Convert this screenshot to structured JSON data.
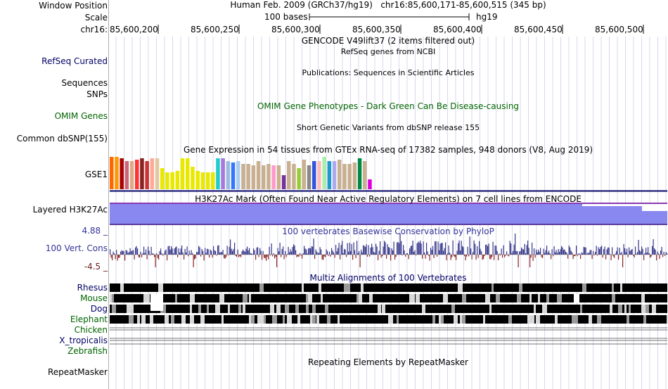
{
  "header": {
    "window_position_label": "Window Position",
    "scale_label": "Scale",
    "chrom_label": "chr16:",
    "assembly_text": "Human Feb. 2009 (GRCh37/hg19)   chr16:85,600,171-85,600,515 (345 bp)",
    "scale_text": "100 bases",
    "scale_db": "hg19",
    "ticks": [
      "85,600,200",
      "85,600,250",
      "85,600,300",
      "85,600,350",
      "85,600,400",
      "85,600,450",
      "85,600,500"
    ]
  },
  "tracks": {
    "gencode": {
      "center_label": "GENCODE V49lift37 (2 items filtered out)"
    },
    "refseq": {
      "label": "RefSeq Curated",
      "center_label": "RefSeq genes from NCBI"
    },
    "publications": {
      "center_label": "Publications: Sequences in Scientific Articles"
    },
    "sequences": {
      "label": "Sequences"
    },
    "snps": {
      "label": "SNPs"
    },
    "omim": {
      "label": "OMIM Genes",
      "center_label": "OMIM Gene Phenotypes - Dark Green Can Be Disease-causing"
    },
    "dbsnp": {
      "label": "Common dbSNP(155)",
      "center_label": "Short Genetic Variants from dbSNP release 155"
    },
    "gtex": {
      "label": "GSE1",
      "center_label": "Gene Expression in 54 tissues from GTEx RNA-seq of 17382 samples, 948 donors (V8, Aug 2019)",
      "tissue_colors": [
        "#FF6600",
        "#FF9900",
        "#AA0000",
        "#CC6677",
        "#DDAA88",
        "#FF3333",
        "#8B2222",
        "#CC3333",
        "#FFAA99",
        "#E0C8A0",
        "#E8E800",
        "#E8E800",
        "#E8E800",
        "#E8E800",
        "#E8E800",
        "#E8E800",
        "#E8E800",
        "#E8E800",
        "#E8E800",
        "#E8E800",
        "#E8E800",
        "#22CCCC",
        "#AA77DD",
        "#99BBDD",
        "#3377FF",
        "#AACCEE",
        "#C8B090",
        "#C8B090",
        "#C8B090",
        "#C8B090",
        "#C8B090",
        "#C8B090",
        "#FF99CC",
        "#C8B090",
        "#773399",
        "#C8B090",
        "#C8B090",
        "#99CC33",
        "#C8B090",
        "#888888",
        "#3355DD",
        "#FFBBBB",
        "#AAEEAA",
        "#2299CC",
        "#AAAAEE",
        "#C8B090",
        "#C8B090",
        "#C8B090",
        "#C8B090",
        "#008844",
        "#C8B090",
        "#DD00DD"
      ],
      "tissue_values": [
        46,
        46,
        44,
        40,
        40,
        42,
        44,
        40,
        44,
        44,
        30,
        24,
        24,
        26,
        44,
        44,
        32,
        26,
        24,
        24,
        24,
        44,
        44,
        40,
        38,
        40,
        36,
        36,
        34,
        40,
        34,
        36,
        34,
        34,
        20,
        40,
        36,
        30,
        42,
        34,
        40,
        40,
        46,
        40,
        40,
        42,
        36,
        36,
        38,
        44,
        40,
        14
      ]
    },
    "h3k27ac": {
      "label": "Layered H3K27Ac",
      "center_label": "H3K27Ac Mark (Often Found Near Active Regulatory Elements) on 7 cell lines from ENCODE"
    },
    "phylop": {
      "label": "100 Vert. Cons",
      "center_label": "100 vertebrates Basewise Conservation by PhyloP",
      "max_label": "4.88 _",
      "min_label": "-4.5 _"
    },
    "multiz": {
      "center_label": "Multiz Alignments of 100 Vertebrates",
      "species": [
        {
          "name": "Rhesus",
          "color": "#000066"
        },
        {
          "name": "Mouse",
          "color": "#006400"
        },
        {
          "name": "Dog",
          "color": "#000066"
        },
        {
          "name": "Elephant",
          "color": "#006400"
        },
        {
          "name": "Chicken",
          "color": "#006400"
        },
        {
          "name": "X_tropicalis",
          "color": "#000066"
        },
        {
          "name": "Zebrafish",
          "color": "#006400"
        }
      ]
    },
    "repeatmasker": {
      "label": "RepeatMasker",
      "center_label": "Repeating Elements by RepeatMasker"
    }
  },
  "colors": {
    "grid": "#d8d8ee",
    "phylop_pos": "#333388",
    "phylop_neg": "#8a2020",
    "h3k27ac": "#8888f0",
    "separator": "#000066"
  }
}
